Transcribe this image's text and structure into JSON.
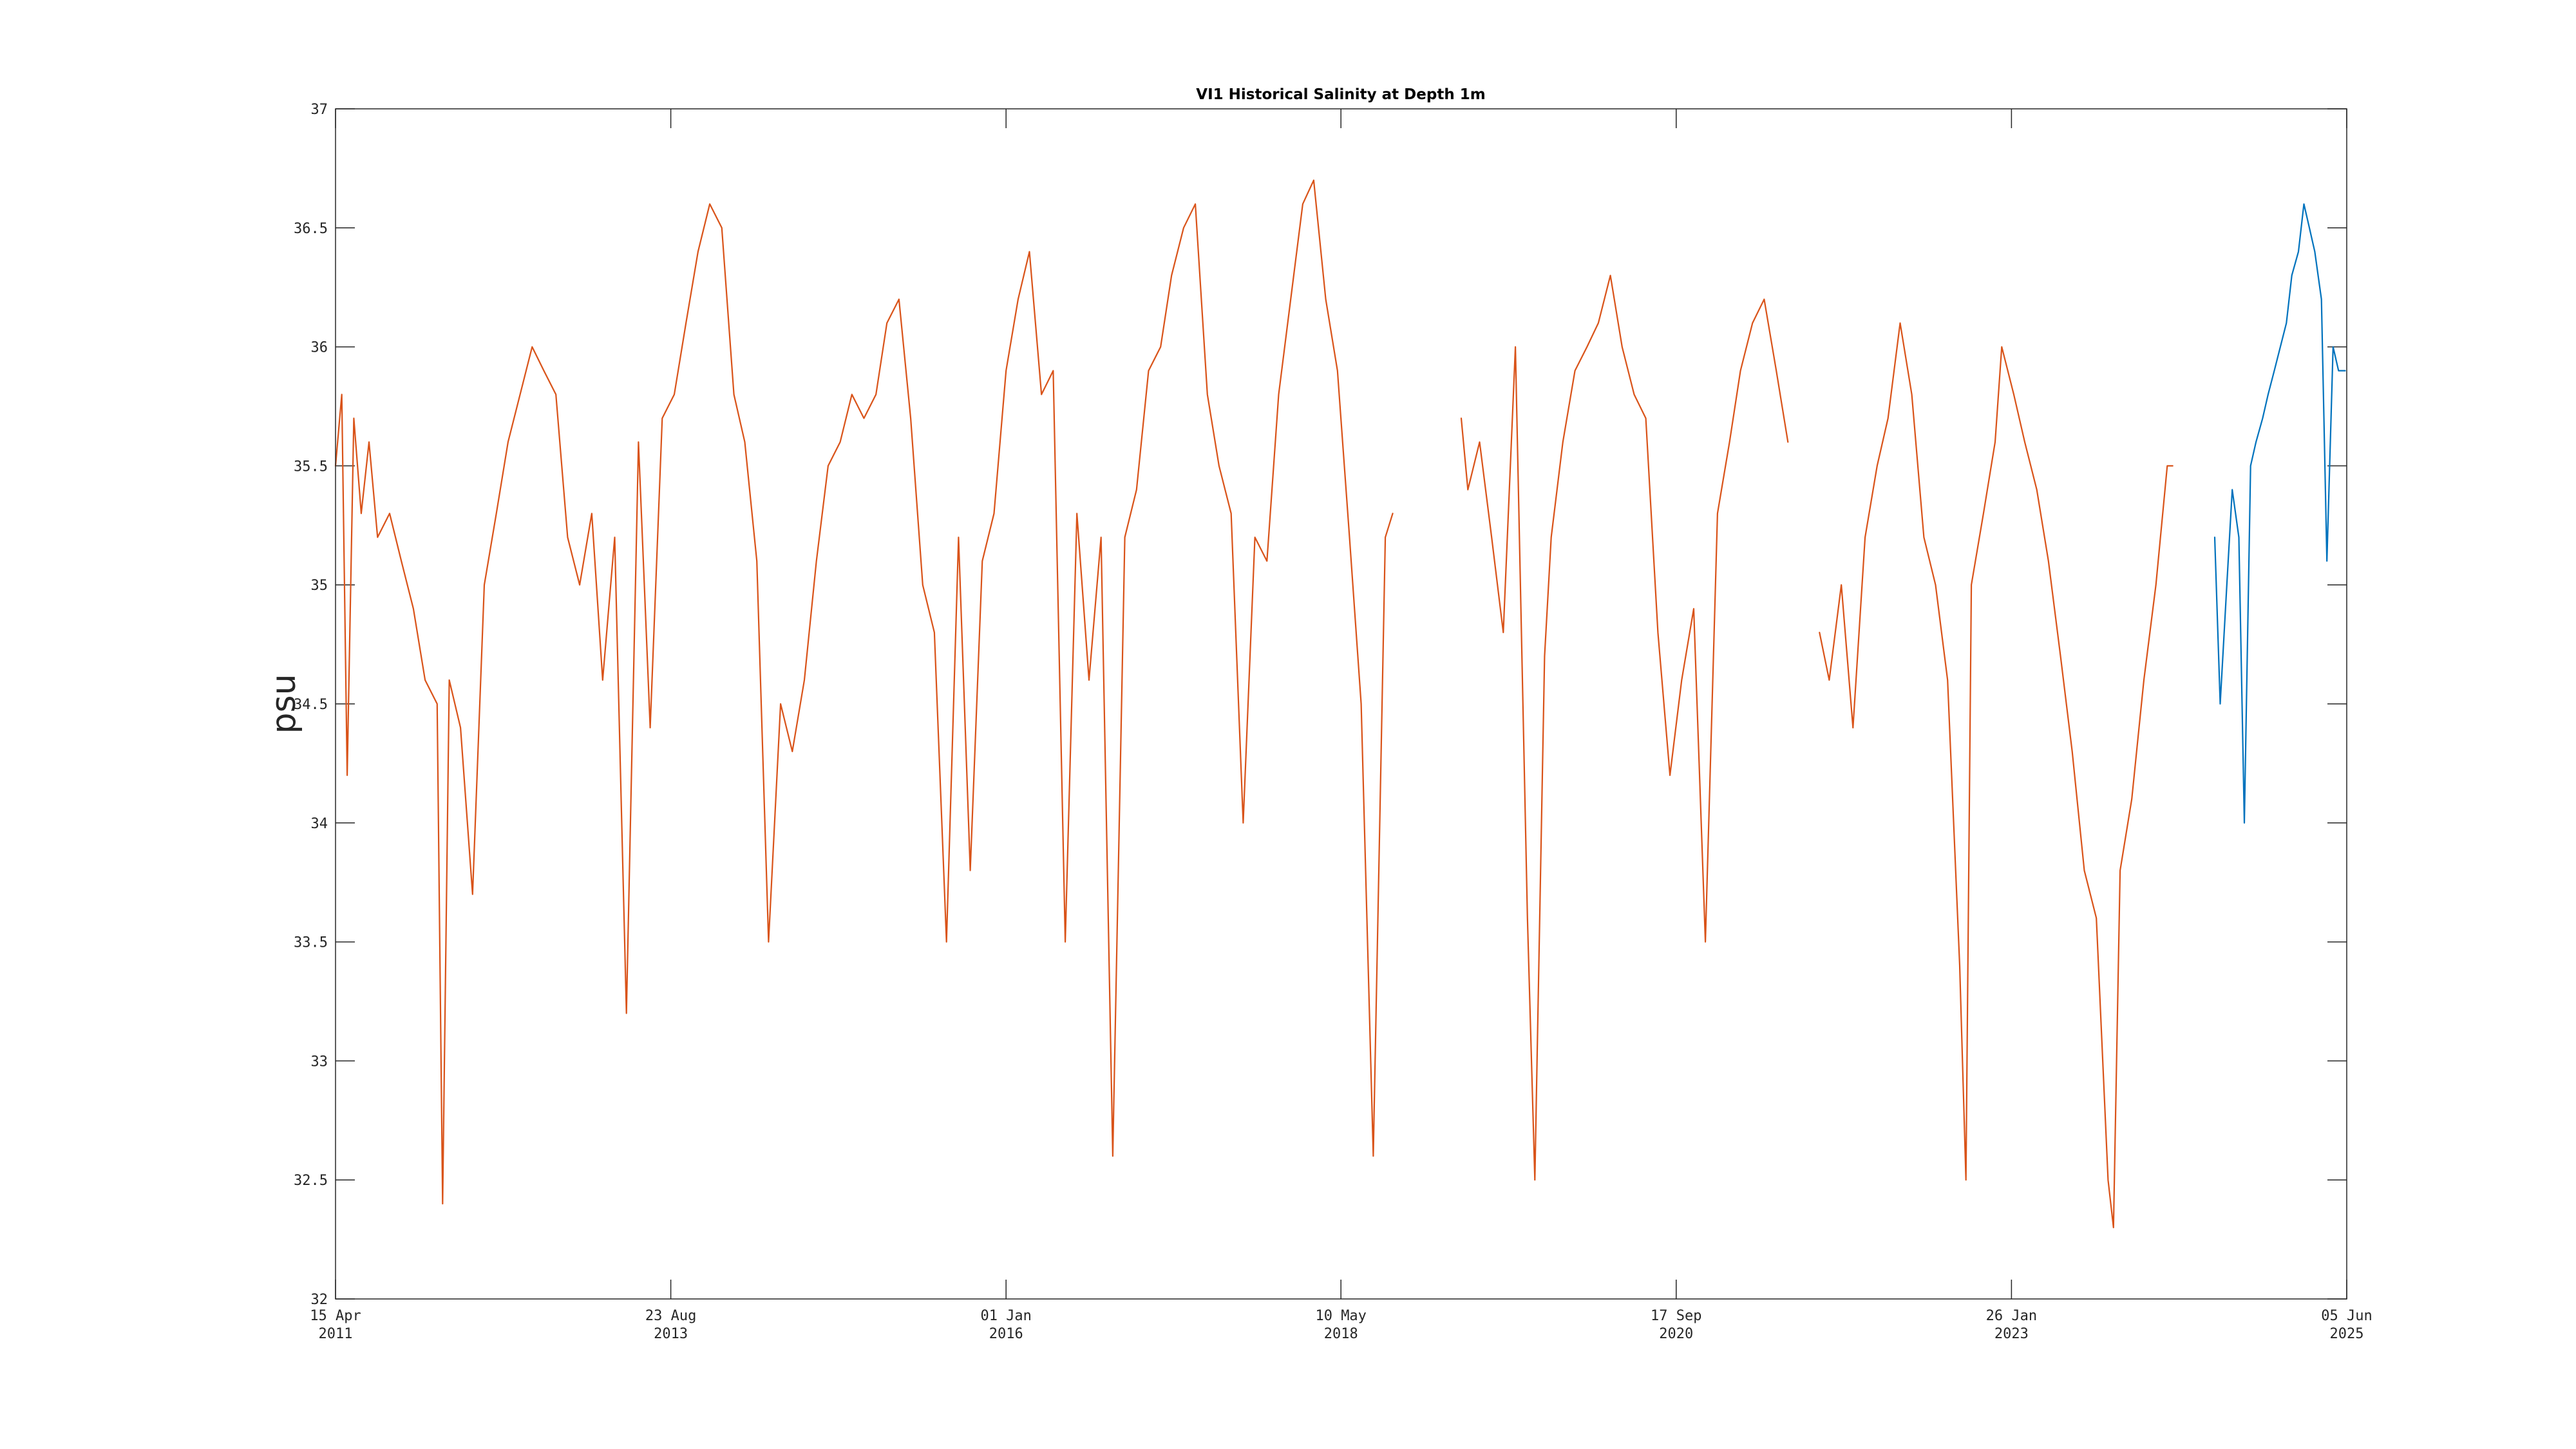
{
  "chart_data": {
    "type": "line",
    "title": "VI1 Historical Salinity at Depth 1m",
    "xlabel": "",
    "ylabel": "psu",
    "xlim": [
      "2011-04-15",
      "2025-06-05"
    ],
    "ylim": [
      32,
      37
    ],
    "yticks": [
      32,
      32.5,
      33,
      33.5,
      34,
      34.5,
      35,
      35.5,
      36,
      36.5,
      37
    ],
    "xticks": [
      {
        "date": "2011-04-15",
        "line1": "15 Apr",
        "line2": "2011"
      },
      {
        "date": "2013-08-23",
        "line1": "23 Aug",
        "line2": "2013"
      },
      {
        "date": "2016-01-01",
        "line1": "01 Jan",
        "line2": "2016"
      },
      {
        "date": "2018-05-10",
        "line1": "10 May",
        "line2": "2018"
      },
      {
        "date": "2020-09-17",
        "line1": "17 Sep",
        "line2": "2020"
      },
      {
        "date": "2023-01-26",
        "line1": "26 Jan",
        "line2": "2023"
      },
      {
        "date": "2025-06-05",
        "line1": "05 Jun",
        "line2": "2025"
      }
    ],
    "grid": false,
    "series": [
      {
        "color": "#D95319",
        "segments": [
          [
            [
              "2011-04-15",
              35.5
            ],
            [
              "2011-05-01",
              35.8
            ],
            [
              "2011-05-15",
              34.2
            ],
            [
              "2011-06-01",
              35.7
            ],
            [
              "2011-06-20",
              35.3
            ],
            [
              "2011-07-10",
              35.6
            ],
            [
              "2011-08-01",
              35.2
            ],
            [
              "2011-09-01",
              35.3
            ],
            [
              "2011-10-01",
              35.1
            ],
            [
              "2011-11-01",
              34.9
            ],
            [
              "2011-12-01",
              34.6
            ],
            [
              "2012-01-01",
              34.5
            ],
            [
              "2012-01-15",
              32.4
            ],
            [
              "2012-02-01",
              34.6
            ],
            [
              "2012-03-01",
              34.4
            ],
            [
              "2012-04-01",
              33.7
            ],
            [
              "2012-05-01",
              35.0
            ],
            [
              "2012-06-01",
              35.3
            ],
            [
              "2012-07-01",
              35.6
            ],
            [
              "2012-08-01",
              35.8
            ],
            [
              "2012-09-01",
              36.0
            ],
            [
              "2012-10-01",
              35.9
            ],
            [
              "2012-11-01",
              35.8
            ],
            [
              "2012-12-01",
              35.2
            ],
            [
              "2013-01-01",
              35.0
            ],
            [
              "2013-02-01",
              35.3
            ],
            [
              "2013-03-01",
              34.6
            ],
            [
              "2013-04-01",
              35.2
            ],
            [
              "2013-05-01",
              33.2
            ],
            [
              "2013-06-01",
              35.6
            ],
            [
              "2013-07-01",
              34.4
            ],
            [
              "2013-08-01",
              35.7
            ],
            [
              "2013-09-01",
              35.8
            ],
            [
              "2013-10-01",
              36.1
            ],
            [
              "2013-11-01",
              36.4
            ],
            [
              "2013-12-01",
              36.6
            ],
            [
              "2014-01-01",
              36.5
            ],
            [
              "2014-02-01",
              35.8
            ],
            [
              "2014-03-01",
              35.6
            ],
            [
              "2014-04-01",
              35.1
            ],
            [
              "2014-05-01",
              33.5
            ],
            [
              "2014-06-01",
              34.5
            ],
            [
              "2014-07-01",
              34.3
            ],
            [
              "2014-08-01",
              34.6
            ],
            [
              "2014-09-01",
              35.1
            ],
            [
              "2014-10-01",
              35.5
            ],
            [
              "2014-11-01",
              35.6
            ],
            [
              "2014-12-01",
              35.8
            ],
            [
              "2015-01-01",
              35.7
            ],
            [
              "2015-02-01",
              35.8
            ],
            [
              "2015-03-01",
              36.1
            ],
            [
              "2015-04-01",
              36.2
            ],
            [
              "2015-05-01",
              35.7
            ],
            [
              "2015-06-01",
              35.0
            ],
            [
              "2015-07-01",
              34.8
            ],
            [
              "2015-08-01",
              33.5
            ],
            [
              "2015-09-01",
              35.2
            ],
            [
              "2015-10-01",
              33.8
            ],
            [
              "2015-11-01",
              35.1
            ],
            [
              "2015-12-01",
              35.3
            ],
            [
              "2016-01-01",
              35.9
            ],
            [
              "2016-02-01",
              36.2
            ],
            [
              "2016-03-01",
              36.4
            ],
            [
              "2016-04-01",
              35.8
            ],
            [
              "2016-05-01",
              35.9
            ],
            [
              "2016-06-01",
              33.5
            ],
            [
              "2016-07-01",
              35.3
            ],
            [
              "2016-08-01",
              34.6
            ],
            [
              "2016-09-01",
              35.2
            ],
            [
              "2016-10-01",
              32.6
            ],
            [
              "2016-11-01",
              35.2
            ],
            [
              "2016-12-01",
              35.4
            ],
            [
              "2017-01-01",
              35.9
            ],
            [
              "2017-02-01",
              36.0
            ],
            [
              "2017-03-01",
              36.3
            ],
            [
              "2017-04-01",
              36.5
            ],
            [
              "2017-05-01",
              36.6
            ],
            [
              "2017-06-01",
              35.8
            ],
            [
              "2017-07-01",
              35.5
            ],
            [
              "2017-08-01",
              35.3
            ],
            [
              "2017-09-01",
              34.0
            ],
            [
              "2017-10-01",
              35.2
            ],
            [
              "2017-11-01",
              35.1
            ],
            [
              "2017-12-01",
              35.8
            ],
            [
              "2018-01-01",
              36.2
            ],
            [
              "2018-02-01",
              36.6
            ],
            [
              "2018-03-01",
              36.7
            ],
            [
              "2018-04-01",
              36.2
            ],
            [
              "2018-05-01",
              35.9
            ],
            [
              "2018-06-01",
              35.2
            ],
            [
              "2018-07-01",
              34.5
            ],
            [
              "2018-08-01",
              32.6
            ],
            [
              "2018-09-01",
              35.2
            ],
            [
              "2018-09-20",
              35.3
            ]
          ],
          [
            [
              "2019-03-15",
              35.7
            ],
            [
              "2019-04-01",
              35.4
            ],
            [
              "2019-05-01",
              35.6
            ],
            [
              "2019-06-01",
              35.2
            ],
            [
              "2019-07-01",
              34.8
            ],
            [
              "2019-08-01",
              36.0
            ],
            [
              "2019-09-01",
              33.6
            ],
            [
              "2019-09-20",
              32.5
            ],
            [
              "2019-10-15",
              34.7
            ],
            [
              "2019-11-01",
              35.2
            ],
            [
              "2019-12-01",
              35.6
            ],
            [
              "2020-01-01",
              35.9
            ],
            [
              "2020-02-01",
              36.0
            ],
            [
              "2020-03-01",
              36.1
            ],
            [
              "2020-04-01",
              36.3
            ],
            [
              "2020-05-01",
              36.0
            ],
            [
              "2020-06-01",
              35.8
            ],
            [
              "2020-07-01",
              35.7
            ],
            [
              "2020-08-01",
              34.8
            ],
            [
              "2020-09-01",
              34.2
            ],
            [
              "2020-10-01",
              34.6
            ],
            [
              "2020-11-01",
              34.9
            ],
            [
              "2020-12-01",
              33.5
            ],
            [
              "2021-01-01",
              35.3
            ],
            [
              "2021-02-01",
              35.6
            ],
            [
              "2021-03-01",
              35.9
            ],
            [
              "2021-04-01",
              36.1
            ],
            [
              "2021-05-01",
              36.2
            ],
            [
              "2021-06-01",
              35.9
            ],
            [
              "2021-07-01",
              35.6
            ]
          ],
          [
            [
              "2021-09-20",
              34.8
            ],
            [
              "2021-10-15",
              34.6
            ],
            [
              "2021-11-15",
              35.0
            ],
            [
              "2021-12-15",
              34.4
            ],
            [
              "2022-01-15",
              35.2
            ],
            [
              "2022-02-15",
              35.5
            ],
            [
              "2022-03-15",
              35.7
            ],
            [
              "2022-04-15",
              36.1
            ],
            [
              "2022-05-15",
              35.8
            ],
            [
              "2022-06-15",
              35.2
            ],
            [
              "2022-07-15",
              35.0
            ],
            [
              "2022-08-15",
              34.6
            ],
            [
              "2022-09-15",
              33.4
            ],
            [
              "2022-10-01",
              32.5
            ],
            [
              "2022-10-15",
              35.0
            ],
            [
              "2022-11-15",
              35.3
            ],
            [
              "2022-12-15",
              35.6
            ],
            [
              "2023-01-01",
              36.0
            ],
            [
              "2023-02-01",
              35.8
            ],
            [
              "2023-03-01",
              35.6
            ],
            [
              "2023-04-01",
              35.4
            ],
            [
              "2023-05-01",
              35.1
            ],
            [
              "2023-06-01",
              34.7
            ],
            [
              "2023-07-01",
              34.3
            ],
            [
              "2023-08-01",
              33.8
            ],
            [
              "2023-09-01",
              33.6
            ],
            [
              "2023-10-01",
              32.5
            ],
            [
              "2023-10-15",
              32.3
            ],
            [
              "2023-11-01",
              33.8
            ],
            [
              "2023-12-01",
              34.1
            ],
            [
              "2024-01-01",
              34.6
            ],
            [
              "2024-02-01",
              35.0
            ],
            [
              "2024-03-01",
              35.5
            ],
            [
              "2024-03-15",
              35.5
            ]
          ]
        ]
      },
      {
        "color": "#0072BD",
        "segments": [
          [
            [
              "2024-07-01",
              35.2
            ],
            [
              "2024-07-15",
              34.5
            ],
            [
              "2024-08-01",
              35.0
            ],
            [
              "2024-08-15",
              35.4
            ],
            [
              "2024-09-01",
              35.2
            ],
            [
              "2024-09-15",
              34.0
            ],
            [
              "2024-10-01",
              35.5
            ],
            [
              "2024-10-15",
              35.6
            ],
            [
              "2024-11-01",
              35.7
            ],
            [
              "2024-11-15",
              35.8
            ],
            [
              "2024-12-01",
              35.9
            ],
            [
              "2025-01-01",
              36.1
            ],
            [
              "2025-01-15",
              36.3
            ],
            [
              "2025-02-01",
              36.4
            ],
            [
              "2025-02-15",
              36.6
            ],
            [
              "2025-03-01",
              36.5
            ],
            [
              "2025-03-15",
              36.4
            ],
            [
              "2025-04-01",
              36.2
            ],
            [
              "2025-04-15",
              35.1
            ],
            [
              "2025-05-01",
              36.0
            ],
            [
              "2025-05-15",
              35.9
            ],
            [
              "2025-06-01",
              35.9
            ]
          ]
        ]
      }
    ]
  }
}
